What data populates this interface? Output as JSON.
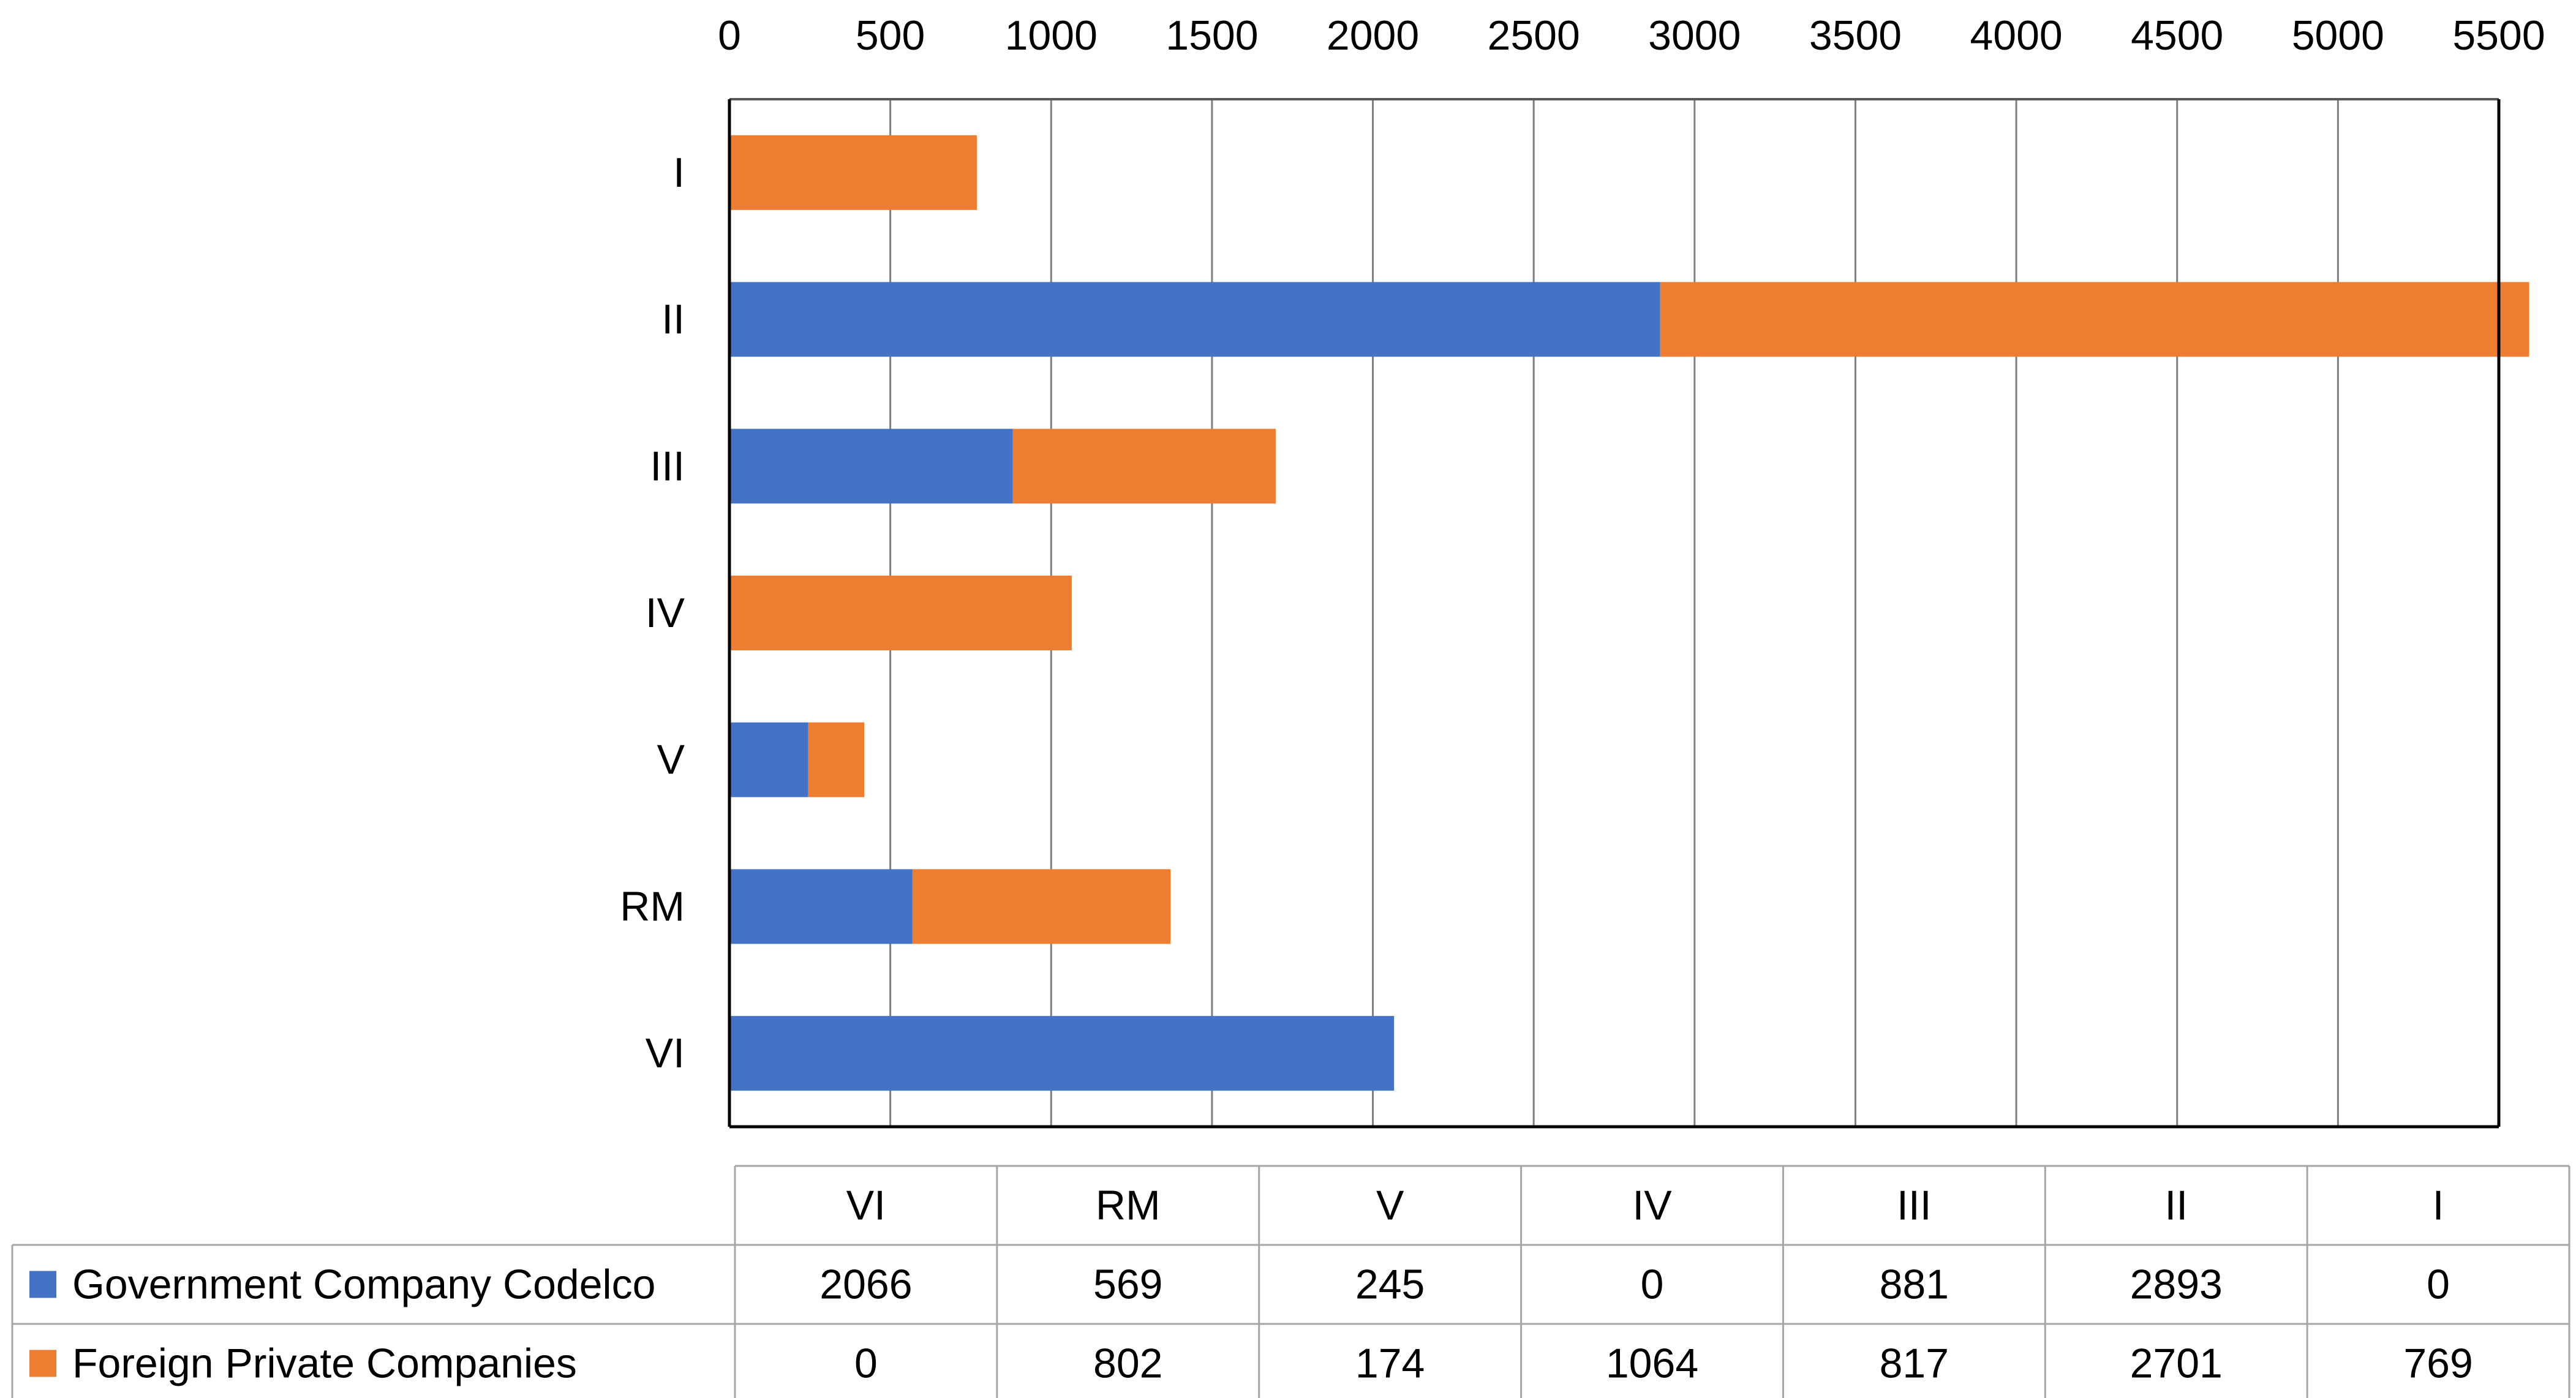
{
  "chart_data": {
    "type": "bar",
    "orientation": "horizontal",
    "stacked": true,
    "categories": [
      "I",
      "II",
      "III",
      "IV",
      "V",
      "RM",
      "VI"
    ],
    "table_categories": [
      "VI",
      "RM",
      "V",
      "IV",
      "III",
      "II",
      "I"
    ],
    "x_ticks": [
      "0",
      "500",
      "1000",
      "1500",
      "2000",
      "2500",
      "3000",
      "3500",
      "4000",
      "4500",
      "5000",
      "5500"
    ],
    "xlim": [
      0,
      5500
    ],
    "grid": true,
    "series": [
      {
        "name": "Government Company Codelco",
        "color": "#4472C4",
        "values": [
          0,
          2893,
          881,
          0,
          245,
          569,
          2066
        ]
      },
      {
        "name": "Foreign Private Companies",
        "color": "#ED7D31",
        "values": [
          769,
          2701,
          817,
          1064,
          174,
          802,
          0
        ]
      }
    ]
  }
}
